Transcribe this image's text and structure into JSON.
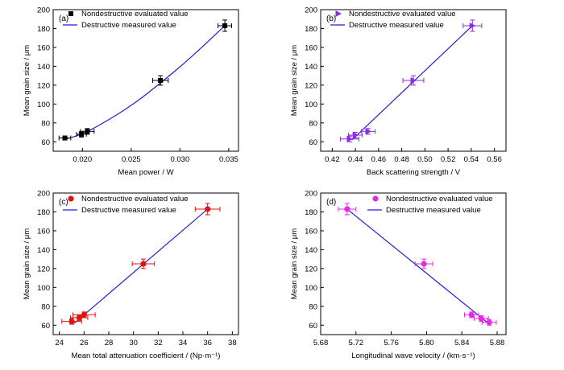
{
  "chart_data": [
    {
      "type": "scatter",
      "panel_label": "(a)",
      "xlabel": "Mean power / W",
      "ylabel": "Mean grain size / μm",
      "xlim": [
        0.017,
        0.036
      ],
      "ylim": [
        50,
        200
      ],
      "xticks": [
        0.02,
        0.025,
        0.03,
        0.035
      ],
      "xtick_labels": [
        "0.020",
        "0.025",
        "0.030",
        "0.035"
      ],
      "yticks": [
        60,
        80,
        100,
        120,
        140,
        160,
        180,
        200
      ],
      "ytick_labels": [
        "60",
        "80",
        "100",
        "120",
        "140",
        "160",
        "180",
        "200"
      ],
      "legend_position": "top-left",
      "series": [
        {
          "name": "Nondestructive evaluated value",
          "color": "#000000",
          "marker": "square",
          "points": [
            {
              "x": 0.0182,
              "y": 64,
              "xerr": 0.0006,
              "yerr": 2
            },
            {
              "x": 0.0199,
              "y": 68,
              "xerr": 0.0005,
              "yerr": 3
            },
            {
              "x": 0.0205,
              "y": 71,
              "xerr": 0.0007,
              "yerr": 3
            },
            {
              "x": 0.028,
              "y": 125,
              "xerr": 0.0008,
              "yerr": 5
            },
            {
              "x": 0.0346,
              "y": 183,
              "xerr": 0.0007,
              "yerr": 6
            }
          ]
        },
        {
          "name": "Destructive measured value",
          "color": "#1f1fd6",
          "line": "curve",
          "points": [
            {
              "x": 0.018,
              "y": 62
            },
            {
              "x": 0.02,
              "y": 68
            },
            {
              "x": 0.022,
              "y": 79
            },
            {
              "x": 0.025,
              "y": 98
            },
            {
              "x": 0.028,
              "y": 122
            },
            {
              "x": 0.031,
              "y": 148
            },
            {
              "x": 0.0346,
              "y": 183
            }
          ]
        }
      ]
    },
    {
      "type": "scatter",
      "panel_label": "(b)",
      "xlabel": "Back scattering strength / V",
      "ylabel": "Mean grain size / μm",
      "xlim": [
        0.41,
        0.57
      ],
      "ylim": [
        50,
        200
      ],
      "xticks": [
        0.42,
        0.44,
        0.46,
        0.48,
        0.5,
        0.52,
        0.54,
        0.56
      ],
      "xtick_labels": [
        "0.42",
        "0.44",
        "0.46",
        "0.48",
        "0.50",
        "0.52",
        "0.54",
        "0.56"
      ],
      "yticks": [
        60,
        80,
        100,
        120,
        140,
        160,
        180,
        200
      ],
      "ytick_labels": [
        "60",
        "80",
        "100",
        "120",
        "140",
        "160",
        "180",
        "200"
      ],
      "legend_position": "top-left",
      "series": [
        {
          "name": "Nondestructive evaluated value",
          "color": "#8b2be2",
          "marker": "triangle-right",
          "points": [
            {
              "x": 0.435,
              "y": 63,
              "xerr": 0.008,
              "yerr": 3
            },
            {
              "x": 0.44,
              "y": 67,
              "xerr": 0.006,
              "yerr": 3
            },
            {
              "x": 0.451,
              "y": 71,
              "xerr": 0.006,
              "yerr": 3
            },
            {
              "x": 0.49,
              "y": 125,
              "xerr": 0.009,
              "yerr": 5
            },
            {
              "x": 0.541,
              "y": 183,
              "xerr": 0.008,
              "yerr": 6
            }
          ]
        },
        {
          "name": "Destructive measured value",
          "color": "#1f1fd6",
          "line": "linear",
          "points": [
            {
              "x": 0.437,
              "y": 62
            },
            {
              "x": 0.541,
              "y": 183
            }
          ]
        }
      ]
    },
    {
      "type": "scatter",
      "panel_label": "(c)",
      "xlabel": "Mean total attenuation coefficient / (Np·m⁻¹)",
      "ylabel": "Mean grain size / μm",
      "xlim": [
        23.5,
        38.5
      ],
      "ylim": [
        50,
        200
      ],
      "xticks": [
        24,
        26,
        28,
        30,
        32,
        34,
        36,
        38
      ],
      "xtick_labels": [
        "24",
        "26",
        "28",
        "30",
        "32",
        "34",
        "36",
        "38"
      ],
      "yticks": [
        60,
        80,
        100,
        120,
        140,
        160,
        180,
        200
      ],
      "ytick_labels": [
        "60",
        "80",
        "100",
        "120",
        "140",
        "160",
        "180",
        "200"
      ],
      "legend_position": "top-left",
      "series": [
        {
          "name": "Nondestructive evaluated value",
          "color": "#e21212",
          "marker": "circle",
          "points": [
            {
              "x": 25.0,
              "y": 64,
              "xerr": 0.8,
              "yerr": 3
            },
            {
              "x": 25.6,
              "y": 68,
              "xerr": 0.7,
              "yerr": 3
            },
            {
              "x": 26.0,
              "y": 71,
              "xerr": 0.9,
              "yerr": 3
            },
            {
              "x": 30.8,
              "y": 125,
              "xerr": 0.9,
              "yerr": 5
            },
            {
              "x": 36.0,
              "y": 183,
              "xerr": 1.0,
              "yerr": 6
            }
          ]
        },
        {
          "name": "Destructive measured value",
          "color": "#1f1fd6",
          "line": "linear",
          "points": [
            {
              "x": 25.2,
              "y": 62
            },
            {
              "x": 36.0,
              "y": 183
            }
          ]
        }
      ]
    },
    {
      "type": "scatter",
      "panel_label": "(d)",
      "xlabel": "Longitudinal wave velocity / (km·s⁻¹)",
      "ylabel": "Mean grain size / μm",
      "xlim": [
        5.68,
        5.89
      ],
      "ylim": [
        50,
        200
      ],
      "xticks": [
        5.68,
        5.72,
        5.76,
        5.8,
        5.84,
        5.88
      ],
      "xtick_labels": [
        "5.68",
        "5.72",
        "5.76",
        "5.80",
        "5.84",
        "5.88"
      ],
      "yticks": [
        60,
        80,
        100,
        120,
        140,
        160,
        180,
        200
      ],
      "ytick_labels": [
        "60",
        "80",
        "100",
        "120",
        "140",
        "160",
        "180",
        "200"
      ],
      "legend_position": "top-right",
      "series": [
        {
          "name": "Nondestructive evaluated value",
          "color": "#e62be6",
          "marker": "circle",
          "points": [
            {
              "x": 5.71,
              "y": 183,
              "xerr": 0.01,
              "yerr": 6
            },
            {
              "x": 5.797,
              "y": 125,
              "xerr": 0.01,
              "yerr": 5
            },
            {
              "x": 5.851,
              "y": 71,
              "xerr": 0.008,
              "yerr": 3
            },
            {
              "x": 5.862,
              "y": 67,
              "xerr": 0.008,
              "yerr": 3
            },
            {
              "x": 5.871,
              "y": 63,
              "xerr": 0.008,
              "yerr": 3
            }
          ]
        },
        {
          "name": "Destructive measured value",
          "color": "#1f1fd6",
          "line": "linear",
          "points": [
            {
              "x": 5.71,
              "y": 183
            },
            {
              "x": 5.87,
              "y": 62
            }
          ]
        }
      ]
    }
  ]
}
